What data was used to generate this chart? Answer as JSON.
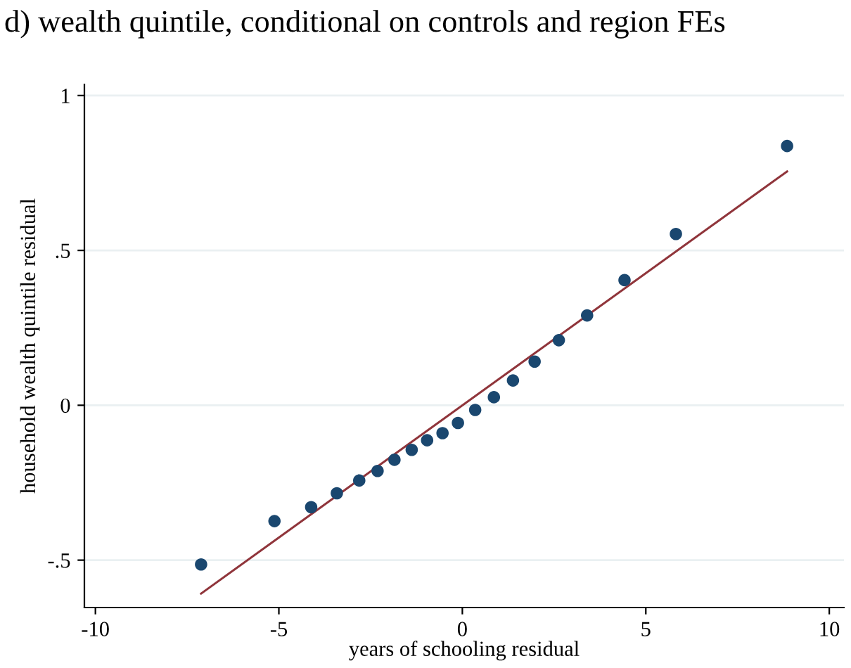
{
  "chart_data": {
    "type": "scatter",
    "title": "d) wealth quintile, conditional on controls and region FEs",
    "xlabel": "years of schooling residual",
    "ylabel": "household wealth quintile residual",
    "series": [
      {
        "color": "#1a476f",
        "marker": "circle",
        "x": [
          -7.12,
          -5.12,
          -4.12,
          -3.42,
          -2.81,
          -2.31,
          -1.85,
          -1.38,
          -0.96,
          -0.54,
          -0.12,
          0.35,
          0.86,
          1.38,
          1.97,
          2.63,
          3.4,
          4.42,
          5.82,
          8.85
        ],
        "values": [
          -0.514,
          -0.374,
          -0.329,
          -0.284,
          -0.243,
          -0.212,
          -0.176,
          -0.144,
          -0.113,
          -0.09,
          -0.057,
          -0.015,
          0.026,
          0.08,
          0.141,
          0.21,
          0.29,
          0.404,
          0.553,
          0.837
        ]
      },
      {
        "type": "line",
        "color": "#90353b",
        "x": [
          -7.12,
          8.85
        ],
        "values": [
          -0.608,
          0.755
        ]
      }
    ],
    "xlim": [
      -10.3,
      10.4
    ],
    "ylim": [
      -0.653,
      1.036
    ],
    "xticks": [
      -10,
      -5,
      0,
      5,
      10
    ],
    "yticks": [
      {
        "value": -0.5,
        "label": "-.5"
      },
      0,
      {
        "value": 0.5,
        "label": ".5"
      },
      1
    ],
    "grid": "y",
    "legend": false
  }
}
